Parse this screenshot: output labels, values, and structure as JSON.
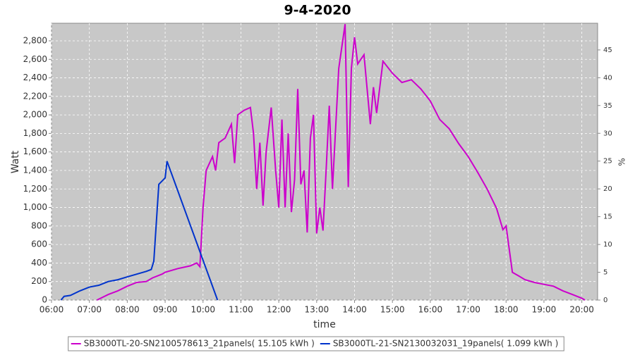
{
  "chart_data": {
    "type": "line",
    "title": "9-4-2020",
    "x_label": "time",
    "y_label": "Watt",
    "y2_label": "%",
    "xlim": [
      "06:00",
      "20:25"
    ],
    "xticks": [
      "06:00",
      "07:00",
      "08:00",
      "09:00",
      "10:00",
      "11:00",
      "12:00",
      "13:00",
      "14:00",
      "15:00",
      "16:00",
      "17:00",
      "18:00",
      "19:00",
      "20:00"
    ],
    "ylim": [
      0,
      2990
    ],
    "yticks": [
      0,
      200,
      400,
      600,
      800,
      {
        "value": 1000,
        "label": "1,000"
      },
      {
        "value": 1200,
        "label": "1,200"
      },
      {
        "value": 1400,
        "label": "1,400"
      },
      {
        "value": 1600,
        "label": "1,600"
      },
      {
        "value": 1800,
        "label": "1,800"
      },
      {
        "value": 2000,
        "label": "2,000"
      },
      {
        "value": 2200,
        "label": "2,200"
      },
      {
        "value": 2400,
        "label": "2,400"
      },
      {
        "value": 2600,
        "label": "2,600"
      },
      {
        "value": 2800,
        "label": "2,800"
      }
    ],
    "y2lim": [
      0,
      49.8
    ],
    "y2ticks": [
      0,
      5,
      10,
      15,
      20,
      25,
      30,
      35,
      40,
      45
    ],
    "grid": true,
    "legend": "bottom",
    "series": [
      {
        "name": "SB3000TL-20-SN2100578613_21panels( 15.105 kWh )",
        "color": "#cc00cc",
        "x": [
          "07:12",
          "07:30",
          "07:45",
          "08:00",
          "08:15",
          "08:30",
          "08:40",
          "08:55",
          "09:00",
          "09:10",
          "09:20",
          "09:40",
          "09:50",
          "09:55",
          "10:00",
          "10:05",
          "10:15",
          "10:20",
          "10:25",
          "10:35",
          "10:45",
          "10:50",
          "10:55",
          "11:05",
          "11:15",
          "11:20",
          "11:25",
          "11:30",
          "11:35",
          "11:40",
          "11:48",
          "11:55",
          "12:00",
          "12:05",
          "12:10",
          "12:15",
          "12:20",
          "12:25",
          "12:30",
          "12:35",
          "12:40",
          "12:45",
          "12:50",
          "12:55",
          "13:00",
          "13:05",
          "13:10",
          "13:15",
          "13:20",
          "13:25",
          "13:35",
          "13:45",
          "13:50",
          "13:55",
          "14:00",
          "14:05",
          "14:15",
          "14:25",
          "14:30",
          "14:35",
          "14:45",
          "15:00",
          "15:15",
          "15:30",
          "15:45",
          "16:00",
          "16:15",
          "16:30",
          "16:45",
          "17:00",
          "17:15",
          "17:30",
          "17:45",
          "17:55",
          "18:00",
          "18:10",
          "18:20",
          "18:30",
          "18:45",
          "19:00",
          "19:15",
          "19:30",
          "19:45",
          "20:00",
          "20:05"
        ],
        "values": [
          0,
          60,
          100,
          150,
          190,
          200,
          240,
          280,
          300,
          320,
          340,
          370,
          400,
          360,
          1000,
          1400,
          1550,
          1400,
          1700,
          1750,
          1900,
          1480,
          2000,
          2050,
          2080,
          1800,
          1200,
          1700,
          1020,
          1600,
          2080,
          1400,
          1000,
          1950,
          1000,
          1800,
          950,
          1300,
          2280,
          1250,
          1400,
          730,
          1750,
          2000,
          720,
          1000,
          750,
          1400,
          2100,
          1200,
          2500,
          2980,
          1220,
          2500,
          2840,
          2550,
          2650,
          1900,
          2300,
          2020,
          2580,
          2450,
          2350,
          2380,
          2280,
          2150,
          1950,
          1850,
          1690,
          1550,
          1380,
          1200,
          990,
          760,
          800,
          300,
          260,
          220,
          190,
          170,
          150,
          100,
          60,
          20,
          0
        ]
      },
      {
        "name": "SB3000TL-21-SN2130032031_19panels( 1.099 kWh )",
        "color": "#0033cc",
        "x": [
          "06:15",
          "06:20",
          "06:30",
          "06:45",
          "07:00",
          "07:15",
          "07:30",
          "07:45",
          "08:00",
          "08:15",
          "08:30",
          "08:38",
          "08:42",
          "08:50",
          "09:00",
          "09:03",
          "10:23"
        ],
        "values": [
          0,
          40,
          50,
          100,
          140,
          160,
          200,
          220,
          250,
          280,
          310,
          330,
          420,
          1250,
          1320,
          1500,
          0
        ]
      }
    ]
  }
}
